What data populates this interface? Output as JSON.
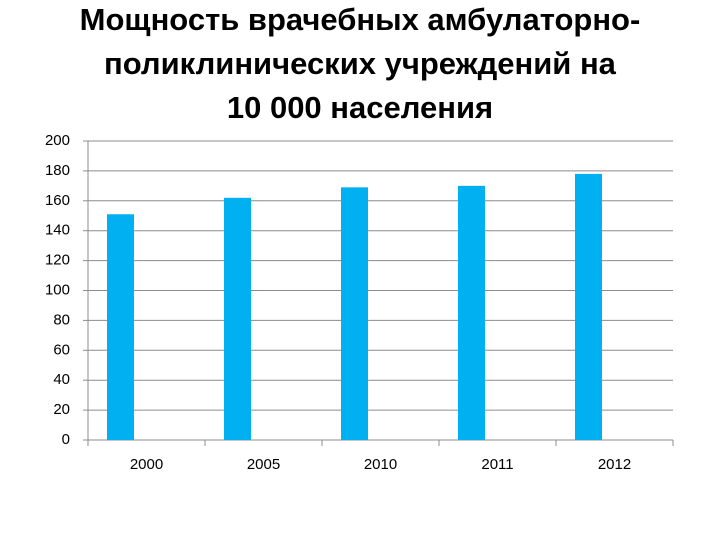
{
  "chart_data": {
    "type": "bar",
    "title": [
      "Мощность врачебных амбулаторно-",
      "поликлинических учреждений на",
      "10 000 населения"
    ],
    "categories": [
      "2000",
      "2005",
      "2010",
      "2011",
      "2012"
    ],
    "values": [
      151,
      162,
      169,
      170,
      178
    ],
    "color": "#00b0f0",
    "ylim": [
      0,
      200
    ],
    "yticks": [
      0,
      20,
      40,
      60,
      80,
      100,
      120,
      140,
      160,
      180,
      200
    ],
    "grid": true
  }
}
